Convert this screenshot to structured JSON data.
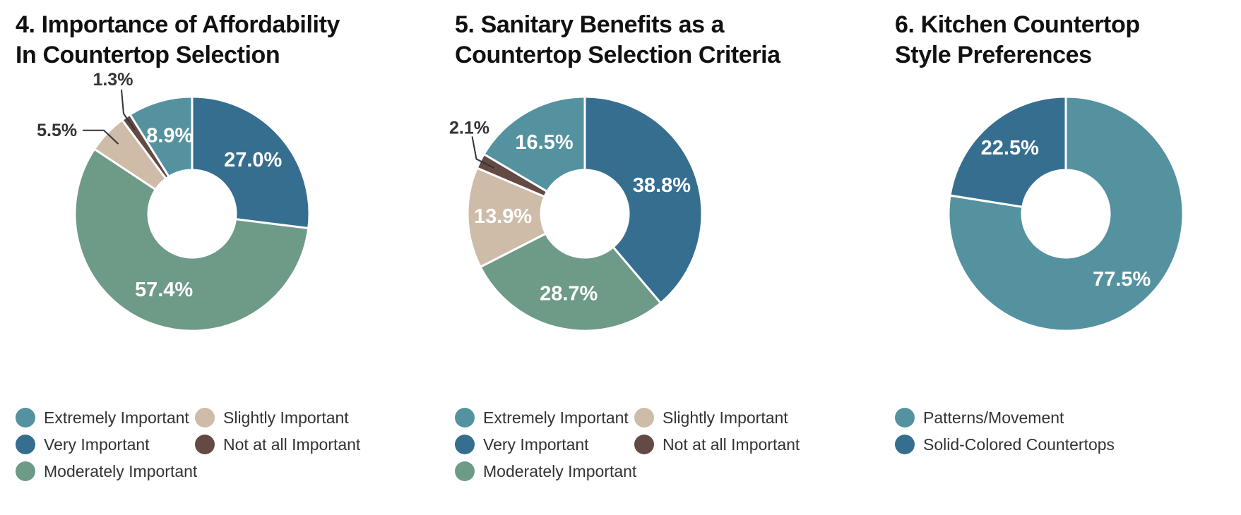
{
  "colors": {
    "extremely": "#5592a0",
    "very": "#366e90",
    "moderately": "#6e9a88",
    "slightly": "#cebca8",
    "not_at_all": "#634a44",
    "patterns": "#5592a0",
    "solid": "#366e90",
    "inside_label": "#ffffff",
    "outside_label": "#333333"
  },
  "chart_data": [
    {
      "type": "pie",
      "title_lines": [
        "4. Importance of Affordability",
        "In Countertop Selection"
      ],
      "start_category": "Very Important",
      "slices": [
        {
          "label": "Very Important",
          "value": 27.0,
          "display": "27.0%",
          "color_key": "very"
        },
        {
          "label": "Moderately Important",
          "value": 57.4,
          "display": "57.4%",
          "color_key": "moderately"
        },
        {
          "label": "Slightly Important",
          "value": 5.5,
          "display": "5.5%",
          "color_key": "slightly"
        },
        {
          "label": "Not at all Important",
          "value": 1.3,
          "display": "1.3%",
          "color_key": "not_at_all"
        },
        {
          "label": "Extremely Important",
          "value": 8.9,
          "display": "8.9%",
          "color_key": "extremely"
        }
      ],
      "legend": [
        {
          "label": "Extremely Important",
          "color_key": "extremely"
        },
        {
          "label": "Slightly Important",
          "color_key": "slightly"
        },
        {
          "label": "Very Important",
          "color_key": "very"
        },
        {
          "label": "Not at all Important",
          "color_key": "not_at_all"
        },
        {
          "label": "Moderately Important",
          "color_key": "moderately"
        }
      ],
      "legend_placement": "bottom"
    },
    {
      "type": "pie",
      "title_lines": [
        "5. Sanitary Benefits as a",
        "Countertop Selection Criteria"
      ],
      "start_category": "Very Important",
      "slices": [
        {
          "label": "Very Important",
          "value": 38.8,
          "display": "38.8%",
          "color_key": "very"
        },
        {
          "label": "Moderately Important",
          "value": 28.7,
          "display": "28.7%",
          "color_key": "moderately"
        },
        {
          "label": "Slightly Important",
          "value": 13.9,
          "display": "13.9%",
          "color_key": "slightly"
        },
        {
          "label": "Not at all Important",
          "value": 2.1,
          "display": "2.1%",
          "color_key": "not_at_all"
        },
        {
          "label": "Extremely Important",
          "value": 16.5,
          "display": "16.5%",
          "color_key": "extremely"
        }
      ],
      "legend": [
        {
          "label": "Extremely Important",
          "color_key": "extremely"
        },
        {
          "label": "Slightly Important",
          "color_key": "slightly"
        },
        {
          "label": "Very Important",
          "color_key": "very"
        },
        {
          "label": "Not at all Important",
          "color_key": "not_at_all"
        },
        {
          "label": "Moderately Important",
          "color_key": "moderately"
        }
      ],
      "legend_placement": "bottom"
    },
    {
      "type": "pie",
      "title_lines": [
        "6. Kitchen Countertop",
        "Style Preferences"
      ],
      "start_category": "Patterns/Movement",
      "slices": [
        {
          "label": "Patterns/Movement",
          "value": 77.5,
          "display": "77.5%",
          "color_key": "patterns"
        },
        {
          "label": "Solid-Colored Countertops",
          "value": 22.5,
          "display": "22.5%",
          "color_key": "solid"
        }
      ],
      "legend": [
        {
          "label": "Patterns/Movement",
          "color_key": "patterns"
        },
        {
          "label": "Solid-Colored Countertops",
          "color_key": "solid"
        }
      ],
      "legend_placement": "bottom"
    }
  ]
}
